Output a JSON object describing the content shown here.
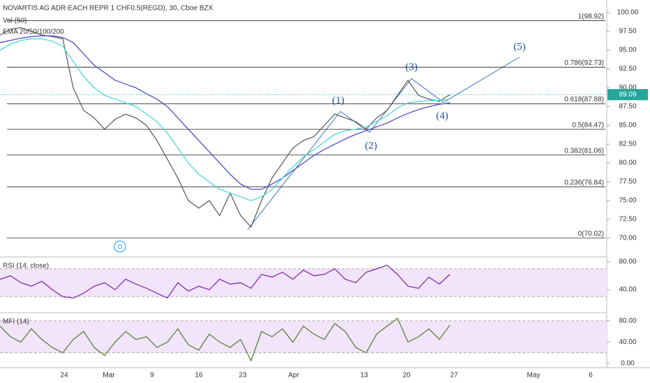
{
  "chart_data": [
    {
      "type": "line",
      "title": "NOVARTIS AG ADR-EACH REPR 1 CHF0.5(REGD), 30, Cboe BZX",
      "annotations": [
        "Vol (50)",
        "EMA 20/50/100/200"
      ],
      "event_marker": "D",
      "wave_labels": [
        "(1)",
        "(2)",
        "(3)",
        "(4)",
        "(5)"
      ],
      "x_labels": [
        "24",
        "Mar",
        "9",
        "16",
        "23",
        "Apr",
        "13",
        "20",
        "27",
        "May",
        "6"
      ],
      "ylim": [
        67.6,
        101.67
      ],
      "yticks": [
        {
          "value": 70,
          "label": "70.00"
        },
        {
          "value": 72.5,
          "label": "72.50"
        },
        {
          "value": 75,
          "label": "75.00"
        },
        {
          "value": 77.5,
          "label": "77.50"
        },
        {
          "value": 80,
          "label": "80.00"
        },
        {
          "value": 82.5,
          "label": "82.50"
        },
        {
          "value": 85,
          "label": "85.00"
        },
        {
          "value": 87.5,
          "label": "87.50"
        },
        {
          "value": 90,
          "label": "90.00"
        },
        {
          "value": 92.5,
          "label": "92.50"
        },
        {
          "value": 95,
          "label": "95.00"
        },
        {
          "value": 97.5,
          "label": "97.50"
        },
        {
          "value": 100,
          "label": "100.00"
        }
      ],
      "levels": [
        {
          "value": 98.92,
          "label": "1(98.92)"
        },
        {
          "value": 92.73,
          "label": "0.786(92.73)"
        },
        {
          "value": 87.88,
          "label": "0.618(87.88)"
        },
        {
          "value": 84.47,
          "label": "0.5(84.47)"
        },
        {
          "value": 81.06,
          "label": "0.382(81.06)"
        },
        {
          "value": 76.84,
          "label": "0.236(76.84)"
        },
        {
          "value": 70.02,
          "label": "0(70.02)"
        }
      ],
      "last_price": 89.09,
      "series": [
        {
          "color": "#555555",
          "values": [
            97,
            97.8,
            98,
            97.5,
            97,
            96.8,
            96.5,
            90,
            87,
            86,
            84.5,
            85.8,
            86.5,
            86,
            85,
            83,
            80.5,
            78,
            75,
            74,
            75,
            73,
            76,
            73,
            71.5,
            75,
            78,
            80,
            82,
            83,
            83.5,
            85,
            86.5,
            86,
            85.5,
            84.5,
            86,
            87,
            89,
            91,
            89,
            88.5,
            88.2,
            89.09
          ]
        },
        {
          "color": "#4c4cc9",
          "values": [
            96,
            96.3,
            96.6,
            96.8,
            96.9,
            96.9,
            96.7,
            96,
            94.5,
            93,
            92,
            91,
            90.5,
            90,
            89.2,
            88.5,
            87.5,
            86,
            84.5,
            83,
            81.5,
            80,
            78.5,
            77.2,
            76.5,
            76.5,
            77.2,
            78,
            79,
            80,
            81,
            81.8,
            82.5,
            83.2,
            83.8,
            84.3,
            84.8,
            85.3,
            86,
            86.6,
            87.1,
            87.5,
            87.8,
            88
          ]
        },
        {
          "color": "#4dd9d9",
          "values": [
            95,
            95.8,
            96.3,
            96.5,
            96.5,
            96.2,
            95.5,
            93.5,
            91.5,
            90,
            89,
            88.5,
            88,
            87.5,
            86.5,
            85.5,
            84,
            82,
            80,
            78.5,
            77.5,
            76.5,
            76,
            75.5,
            75,
            75.5,
            76.5,
            78,
            79.5,
            80.8,
            81.8,
            82.8,
            83.8,
            84.3,
            84.5,
            84.8,
            85.5,
            86.3,
            87.3,
            88,
            88.2,
            88.3,
            88.3,
            88.5
          ]
        }
      ]
    },
    {
      "type": "line",
      "title": "RSI (14, close)",
      "ylim": [
        8,
        86
      ],
      "band": [
        30,
        70
      ],
      "yticks": [
        {
          "value": 80,
          "label": "80.00"
        },
        {
          "value": 40,
          "label": "40.00"
        }
      ],
      "series": [
        {
          "color": "#7b1fa2",
          "values": [
            55,
            60,
            50,
            45,
            52,
            40,
            30,
            28,
            35,
            45,
            50,
            40,
            55,
            48,
            42,
            35,
            28,
            50,
            38,
            45,
            40,
            55,
            48,
            50,
            42,
            62,
            58,
            65,
            55,
            68,
            60,
            62,
            70,
            55,
            50,
            65,
            70,
            75,
            62,
            45,
            42,
            58,
            48,
            62
          ]
        }
      ]
    },
    {
      "type": "line",
      "title": "MFI (14)",
      "ylim": [
        -8,
        94
      ],
      "band": [
        20,
        80
      ],
      "yticks": [
        {
          "value": 80,
          "label": "80.00"
        },
        {
          "value": 40,
          "label": "40.00"
        },
        {
          "value": 0,
          "label": "0.00"
        }
      ],
      "series": [
        {
          "color": "#4f7a28",
          "values": [
            70,
            50,
            40,
            65,
            45,
            30,
            20,
            45,
            60,
            30,
            15,
            40,
            60,
            45,
            50,
            30,
            40,
            65,
            35,
            25,
            55,
            40,
            30,
            45,
            5,
            60,
            50,
            65,
            40,
            70,
            55,
            45,
            75,
            60,
            30,
            20,
            55,
            70,
            85,
            40,
            50,
            65,
            45,
            72
          ]
        }
      ]
    }
  ]
}
